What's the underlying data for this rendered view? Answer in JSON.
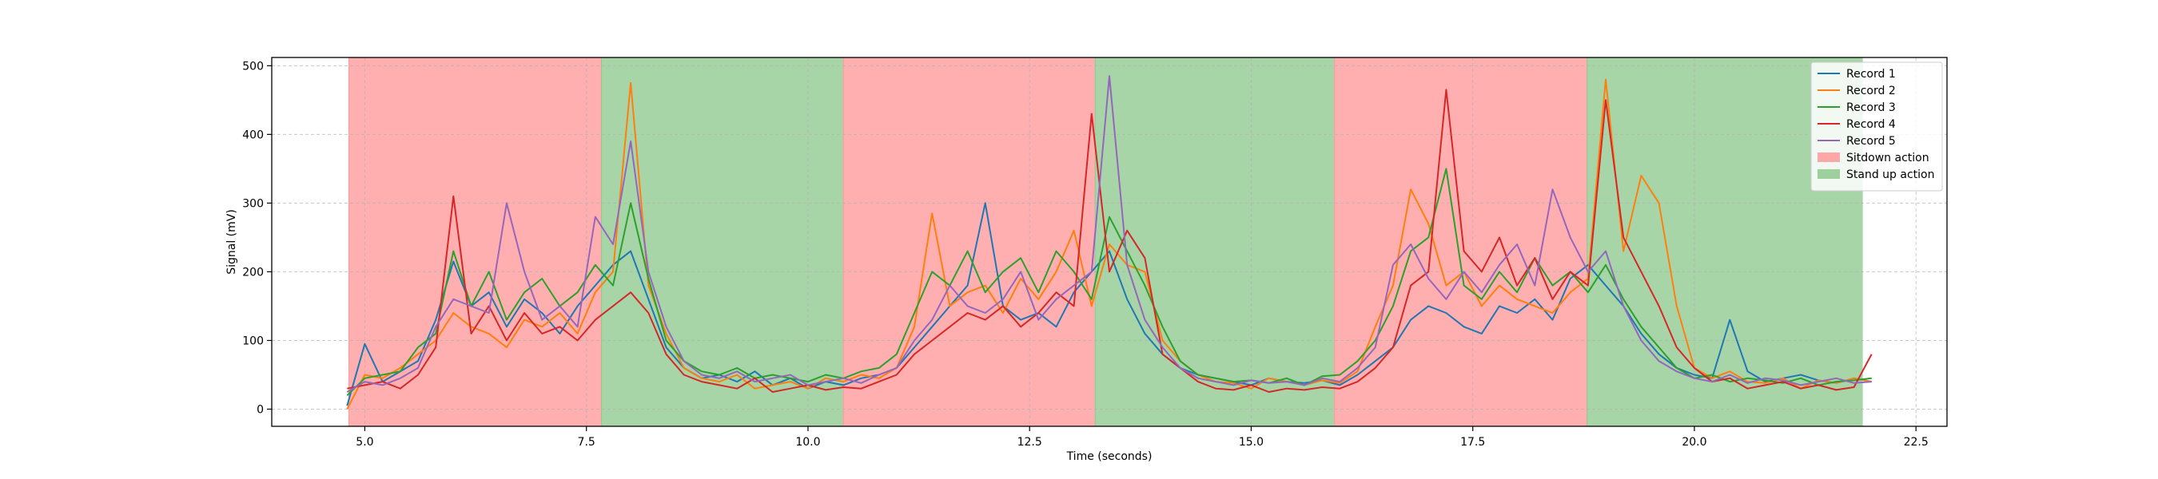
{
  "chart_data": {
    "type": "line",
    "title": "",
    "xlabel": "Time (seconds)",
    "ylabel": "Signal (mV)",
    "xlim": [
      3.95,
      22.85
    ],
    "ylim": [
      -25,
      512
    ],
    "xticks": [
      5.0,
      7.5,
      10.0,
      12.5,
      15.0,
      17.5,
      20.0,
      22.5
    ],
    "xtick_labels": [
      "5.0",
      "7.5",
      "10.0",
      "12.5",
      "15.0",
      "17.5",
      "20.0",
      "22.5"
    ],
    "yticks": [
      0,
      100,
      200,
      300,
      400,
      500
    ],
    "ytick_labels": [
      "0",
      "100",
      "200",
      "300",
      "400",
      "500"
    ],
    "grid": true,
    "legend_position": "top-right",
    "regions": [
      {
        "label": "Sitdown action",
        "start": 4.82,
        "end": 7.67,
        "color": "#ff9999"
      },
      {
        "label": "Stand up action",
        "start": 7.67,
        "end": 10.4,
        "color": "#8fc98f"
      },
      {
        "label": "Sitdown action",
        "start": 10.4,
        "end": 13.24,
        "color": "#ff9999"
      },
      {
        "label": "Stand up action",
        "start": 13.24,
        "end": 15.94,
        "color": "#8fc98f"
      },
      {
        "label": "Sitdown action",
        "start": 15.94,
        "end": 18.79,
        "color": "#ff9999"
      },
      {
        "label": "Stand up action",
        "start": 18.79,
        "end": 21.9,
        "color": "#8fc98f"
      }
    ],
    "legend": [
      {
        "label": "Record 1",
        "kind": "line",
        "color": "#1f77b4"
      },
      {
        "label": "Record 2",
        "kind": "line",
        "color": "#ff7f0e"
      },
      {
        "label": "Record 3",
        "kind": "line",
        "color": "#2ca02c"
      },
      {
        "label": "Record 4",
        "kind": "line",
        "color": "#d62728"
      },
      {
        "label": "Record 5",
        "kind": "line",
        "color": "#9467bd"
      },
      {
        "label": "Sitdown action",
        "kind": "patch",
        "color": "#ff9999"
      },
      {
        "label": "Stand up action",
        "kind": "patch",
        "color": "#8fc98f"
      }
    ],
    "series": [
      {
        "name": "Record 1",
        "color": "#1f77b4",
        "x": [
          4.8,
          5.0,
          5.2,
          5.4,
          5.6,
          5.8,
          6.0,
          6.2,
          6.4,
          6.6,
          6.8,
          7.0,
          7.2,
          7.4,
          7.6,
          7.8,
          8.0,
          8.2,
          8.4,
          8.6,
          8.8,
          9.0,
          9.2,
          9.4,
          9.6,
          9.8,
          10.0,
          10.2,
          10.4,
          10.6,
          10.8,
          11.0,
          11.2,
          11.4,
          11.6,
          11.8,
          12.0,
          12.2,
          12.4,
          12.6,
          12.8,
          13.0,
          13.2,
          13.4,
          13.6,
          13.8,
          14.0,
          14.2,
          14.4,
          14.6,
          14.8,
          15.0,
          15.2,
          15.4,
          15.6,
          15.8,
          16.0,
          16.2,
          16.4,
          16.6,
          16.8,
          17.0,
          17.2,
          17.4,
          17.6,
          17.8,
          18.0,
          18.2,
          18.4,
          18.6,
          18.8,
          19.0,
          19.2,
          19.4,
          19.6,
          19.8,
          20.0,
          20.2,
          20.4,
          20.6,
          20.8,
          21.0,
          21.2,
          21.4,
          21.6,
          21.8,
          22.0
        ],
        "y": [
          5,
          95,
          40,
          55,
          70,
          130,
          215,
          150,
          170,
          120,
          160,
          140,
          110,
          150,
          180,
          210,
          230,
          160,
          90,
          60,
          45,
          50,
          40,
          55,
          35,
          45,
          30,
          40,
          35,
          45,
          50,
          60,
          90,
          120,
          150,
          180,
          300,
          150,
          130,
          140,
          120,
          170,
          200,
          230,
          160,
          110,
          80,
          60,
          50,
          45,
          40,
          35,
          45,
          40,
          38,
          42,
          35,
          50,
          70,
          90,
          130,
          150,
          140,
          120,
          110,
          150,
          140,
          160,
          130,
          190,
          210,
          180,
          150,
          110,
          80,
          60,
          50,
          45,
          130,
          55,
          40,
          45,
          50,
          42,
          38,
          45,
          40
        ]
      },
      {
        "name": "Record 2",
        "color": "#ff7f0e",
        "x": [
          4.8,
          5.0,
          5.2,
          5.4,
          5.6,
          5.8,
          6.0,
          6.2,
          6.4,
          6.6,
          6.8,
          7.0,
          7.2,
          7.4,
          7.6,
          7.8,
          8.0,
          8.2,
          8.4,
          8.6,
          8.8,
          9.0,
          9.2,
          9.4,
          9.6,
          9.8,
          10.0,
          10.2,
          10.4,
          10.6,
          10.8,
          11.0,
          11.2,
          11.4,
          11.6,
          11.8,
          12.0,
          12.2,
          12.4,
          12.6,
          12.8,
          13.0,
          13.2,
          13.4,
          13.6,
          13.8,
          14.0,
          14.2,
          14.4,
          14.6,
          14.8,
          15.0,
          15.2,
          15.4,
          15.6,
          15.8,
          16.0,
          16.2,
          16.4,
          16.6,
          16.8,
          17.0,
          17.2,
          17.4,
          17.6,
          17.8,
          18.0,
          18.2,
          18.4,
          18.6,
          18.8,
          19.0,
          19.2,
          19.4,
          19.6,
          19.8,
          20.0,
          20.2,
          20.4,
          20.6,
          20.8,
          21.0,
          21.2,
          21.4,
          21.6,
          21.8,
          22.0
        ],
        "y": [
          0,
          50,
          45,
          60,
          80,
          100,
          140,
          120,
          110,
          90,
          130,
          120,
          140,
          110,
          170,
          200,
          475,
          180,
          110,
          60,
          45,
          40,
          50,
          30,
          35,
          40,
          30,
          45,
          40,
          50,
          45,
          60,
          120,
          285,
          150,
          170,
          180,
          140,
          190,
          160,
          200,
          260,
          150,
          240,
          210,
          200,
          100,
          70,
          50,
          40,
          38,
          30,
          45,
          40,
          35,
          42,
          38,
          55,
          120,
          180,
          320,
          270,
          180,
          200,
          150,
          180,
          160,
          150,
          140,
          170,
          190,
          480,
          230,
          340,
          300,
          150,
          60,
          45,
          55,
          40,
          38,
          45,
          30,
          42,
          38,
          45,
          40
        ]
      },
      {
        "name": "Record 3",
        "color": "#2ca02c",
        "x": [
          4.8,
          5.0,
          5.2,
          5.4,
          5.6,
          5.8,
          6.0,
          6.2,
          6.4,
          6.6,
          6.8,
          7.0,
          7.2,
          7.4,
          7.6,
          7.8,
          8.0,
          8.2,
          8.4,
          8.6,
          8.8,
          9.0,
          9.2,
          9.4,
          9.6,
          9.8,
          10.0,
          10.2,
          10.4,
          10.6,
          10.8,
          11.0,
          11.2,
          11.4,
          11.6,
          11.8,
          12.0,
          12.2,
          12.4,
          12.6,
          12.8,
          13.0,
          13.2,
          13.4,
          13.6,
          13.8,
          14.0,
          14.2,
          14.4,
          14.6,
          14.8,
          15.0,
          15.2,
          15.4,
          15.6,
          15.8,
          16.0,
          16.2,
          16.4,
          16.6,
          16.8,
          17.0,
          17.2,
          17.4,
          17.6,
          17.8,
          18.0,
          18.2,
          18.4,
          18.6,
          18.8,
          19.0,
          19.2,
          19.4,
          19.6,
          19.8,
          20.0,
          20.2,
          20.4,
          20.6,
          20.8,
          21.0,
          21.2,
          21.4,
          21.6,
          21.8,
          22.0
        ],
        "y": [
          20,
          45,
          50,
          55,
          90,
          110,
          230,
          150,
          200,
          130,
          170,
          190,
          150,
          170,
          210,
          180,
          300,
          190,
          100,
          70,
          55,
          50,
          60,
          45,
          50,
          45,
          40,
          50,
          45,
          55,
          60,
          80,
          140,
          200,
          180,
          230,
          170,
          200,
          220,
          170,
          230,
          200,
          160,
          280,
          230,
          180,
          120,
          70,
          50,
          45,
          40,
          42,
          38,
          45,
          35,
          48,
          50,
          70,
          100,
          150,
          230,
          250,
          350,
          180,
          160,
          200,
          170,
          220,
          180,
          200,
          170,
          210,
          160,
          120,
          90,
          60,
          45,
          50,
          40,
          45,
          42,
          38,
          45,
          35,
          40,
          42,
          45
        ]
      },
      {
        "name": "Record 4",
        "color": "#d62728",
        "x": [
          4.8,
          5.0,
          5.2,
          5.4,
          5.6,
          5.8,
          6.0,
          6.2,
          6.4,
          6.6,
          6.8,
          7.0,
          7.2,
          7.4,
          7.6,
          7.8,
          8.0,
          8.2,
          8.4,
          8.6,
          8.8,
          9.0,
          9.2,
          9.4,
          9.6,
          9.8,
          10.0,
          10.2,
          10.4,
          10.6,
          10.8,
          11.0,
          11.2,
          11.4,
          11.6,
          11.8,
          12.0,
          12.2,
          12.4,
          12.6,
          12.8,
          13.0,
          13.2,
          13.4,
          13.6,
          13.8,
          14.0,
          14.2,
          14.4,
          14.6,
          14.8,
          15.0,
          15.2,
          15.4,
          15.6,
          15.8,
          16.0,
          16.2,
          16.4,
          16.6,
          16.8,
          17.0,
          17.2,
          17.4,
          17.6,
          17.8,
          18.0,
          18.2,
          18.4,
          18.6,
          18.8,
          19.0,
          19.2,
          19.4,
          19.6,
          19.8,
          20.0,
          20.2,
          20.4,
          20.6,
          20.8,
          21.0,
          21.2,
          21.4,
          21.6,
          21.8,
          22.0
        ],
        "y": [
          30,
          35,
          40,
          30,
          50,
          90,
          310,
          110,
          150,
          100,
          140,
          110,
          120,
          100,
          130,
          150,
          170,
          140,
          80,
          50,
          40,
          35,
          30,
          45,
          25,
          30,
          35,
          28,
          32,
          30,
          40,
          50,
          80,
          100,
          120,
          140,
          130,
          150,
          120,
          140,
          170,
          150,
          430,
          200,
          260,
          220,
          80,
          60,
          40,
          30,
          28,
          35,
          25,
          30,
          28,
          32,
          30,
          40,
          60,
          90,
          180,
          200,
          465,
          230,
          200,
          250,
          180,
          220,
          160,
          200,
          180,
          450,
          250,
          200,
          150,
          90,
          60,
          40,
          45,
          30,
          35,
          40,
          30,
          35,
          28,
          32,
          80
        ]
      },
      {
        "name": "Record 5",
        "color": "#9467bd",
        "x": [
          4.8,
          5.0,
          5.2,
          5.4,
          5.6,
          5.8,
          6.0,
          6.2,
          6.4,
          6.6,
          6.8,
          7.0,
          7.2,
          7.4,
          7.6,
          7.8,
          8.0,
          8.2,
          8.4,
          8.6,
          8.8,
          9.0,
          9.2,
          9.4,
          9.6,
          9.8,
          10.0,
          10.2,
          10.4,
          10.6,
          10.8,
          11.0,
          11.2,
          11.4,
          11.6,
          11.8,
          12.0,
          12.2,
          12.4,
          12.6,
          12.8,
          13.0,
          13.2,
          13.4,
          13.6,
          13.8,
          14.0,
          14.2,
          14.4,
          14.6,
          14.8,
          15.0,
          15.2,
          15.4,
          15.6,
          15.8,
          16.0,
          16.2,
          16.4,
          16.6,
          16.8,
          17.0,
          17.2,
          17.4,
          17.6,
          17.8,
          18.0,
          18.2,
          18.4,
          18.6,
          18.8,
          19.0,
          19.2,
          19.4,
          19.6,
          19.8,
          20.0,
          20.2,
          20.4,
          20.6,
          20.8,
          21.0,
          21.2,
          21.4,
          21.6,
          21.8,
          22.0
        ],
        "y": [
          25,
          40,
          35,
          45,
          60,
          120,
          160,
          150,
          140,
          300,
          200,
          130,
          150,
          120,
          280,
          240,
          390,
          200,
          120,
          70,
          50,
          45,
          55,
          40,
          45,
          50,
          35,
          40,
          45,
          38,
          50,
          60,
          100,
          130,
          180,
          150,
          140,
          160,
          200,
          130,
          160,
          180,
          200,
          485,
          210,
          130,
          90,
          60,
          45,
          40,
          35,
          42,
          38,
          40,
          35,
          45,
          40,
          60,
          90,
          210,
          240,
          190,
          160,
          200,
          170,
          210,
          240,
          180,
          320,
          250,
          200,
          230,
          150,
          100,
          70,
          55,
          45,
          40,
          50,
          38,
          45,
          42,
          35,
          40,
          45,
          38,
          40
        ]
      }
    ]
  }
}
